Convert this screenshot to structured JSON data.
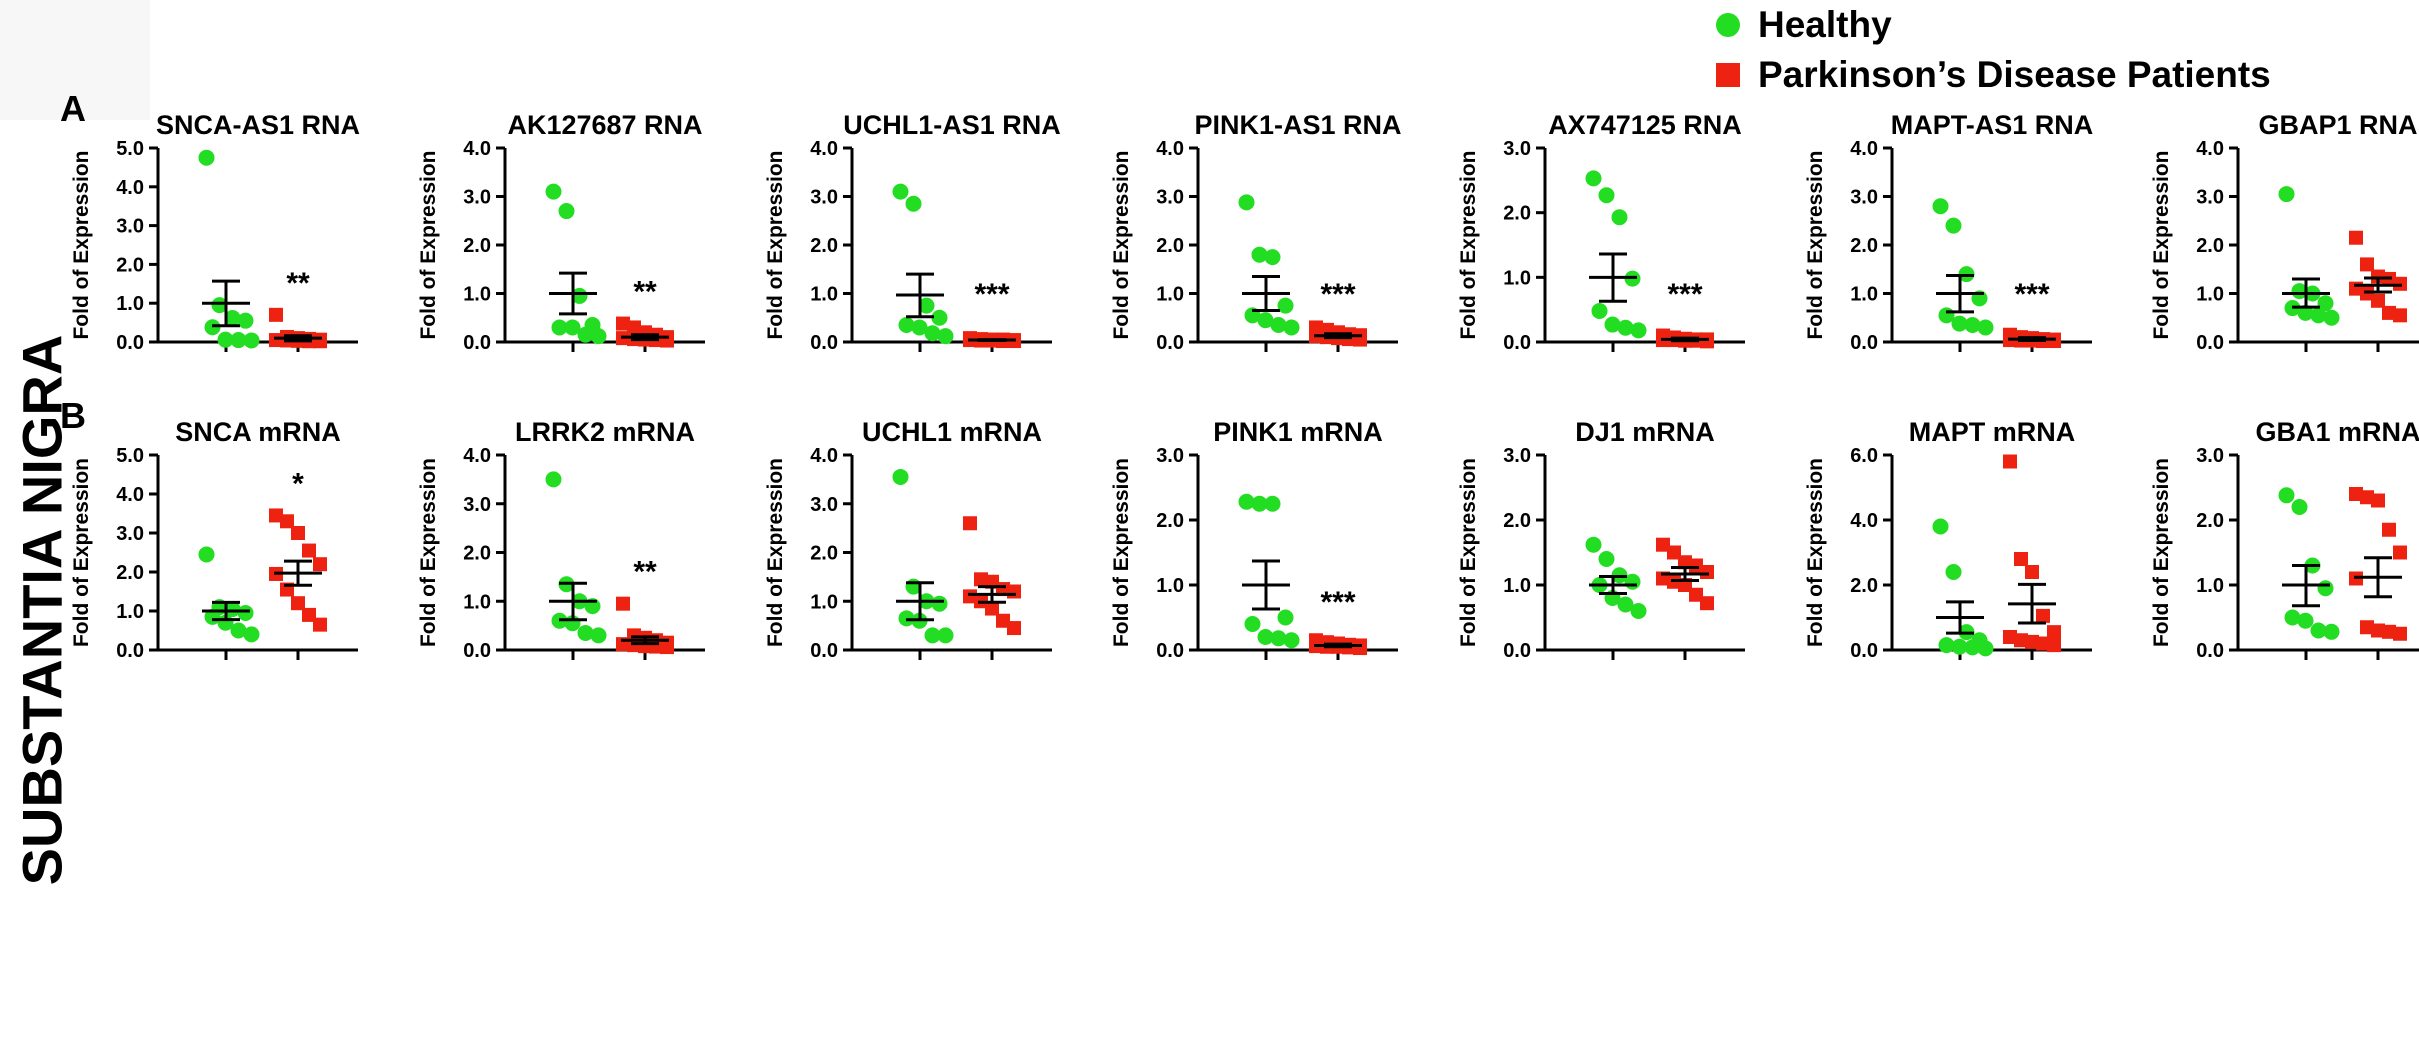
{
  "legend": {
    "healthy_label": "Healthy",
    "patients_label": "Parkinson’s Disease Patients",
    "healthy_color": "#22dd22",
    "patients_color": "#ee2211"
  },
  "side_label": "SUBSTANTIA NIGRA",
  "panel_labels": [
    "A",
    "B"
  ],
  "chart_data": [
    {
      "type": "scatter",
      "title": "SNCA-AS1 RNA",
      "ylabel": "Fold of Expression",
      "ylim": [
        0,
        5
      ],
      "yticks": [
        "0.0",
        "1.0",
        "2.0",
        "3.0",
        "4.0",
        "5.0"
      ],
      "significance": "**",
      "healthy": {
        "values": [
          4.75,
          0.95,
          0.62,
          0.55,
          0.38,
          0.06,
          0.05,
          0.04
        ],
        "mean": 1.0,
        "sem_low": 0.42,
        "sem_high": 1.57
      },
      "patients": {
        "values": [
          0.7,
          0.13,
          0.1,
          0.08,
          0.06,
          0.05,
          0.04,
          0.03,
          0.02,
          0.02
        ],
        "mean": 0.1,
        "sem_low": 0.03,
        "sem_high": 0.16
      }
    },
    {
      "type": "scatter",
      "title": "AK127687 RNA",
      "ylabel": "Fold of Expression",
      "ylim": [
        0,
        4
      ],
      "yticks": [
        "0.0",
        "1.0",
        "2.0",
        "3.0",
        "4.0"
      ],
      "significance": "**",
      "healthy": {
        "values": [
          3.1,
          2.7,
          0.95,
          0.35,
          0.3,
          0.3,
          0.15,
          0.12
        ],
        "mean": 1.0,
        "sem_low": 0.58,
        "sem_high": 1.42
      },
      "patients": {
        "values": [
          0.38,
          0.3,
          0.2,
          0.15,
          0.1,
          0.08,
          0.06,
          0.05,
          0.04,
          0.03
        ],
        "mean": 0.1,
        "sem_low": 0.05,
        "sem_high": 0.15
      }
    },
    {
      "type": "scatter",
      "title": "UCHL1-AS1 RNA",
      "ylabel": "Fold of Expression",
      "ylim": [
        0,
        4
      ],
      "yticks": [
        "0.0",
        "1.0",
        "2.0",
        "3.0",
        "4.0"
      ],
      "significance": "***",
      "healthy": {
        "values": [
          3.1,
          2.85,
          0.75,
          0.5,
          0.35,
          0.3,
          0.18,
          0.12
        ],
        "mean": 0.97,
        "sem_low": 0.52,
        "sem_high": 1.4
      },
      "patients": {
        "values": [
          0.08,
          0.06,
          0.05,
          0.05,
          0.04,
          0.04,
          0.03,
          0.03,
          0.02,
          0.02
        ],
        "mean": 0.04,
        "sem_low": 0.03,
        "sem_high": 0.05
      }
    },
    {
      "type": "scatter",
      "title": "PINK1-AS1 RNA",
      "ylabel": "Fold of Expression",
      "ylim": [
        0,
        4
      ],
      "yticks": [
        "0.0",
        "1.0",
        "2.0",
        "3.0",
        "4.0"
      ],
      "significance": "***",
      "healthy": {
        "values": [
          2.88,
          1.8,
          1.75,
          0.75,
          0.55,
          0.45,
          0.35,
          0.3
        ],
        "mean": 1.0,
        "sem_low": 0.65,
        "sem_high": 1.35
      },
      "patients": {
        "values": [
          0.3,
          0.25,
          0.2,
          0.16,
          0.14,
          0.12,
          0.1,
          0.08,
          0.06,
          0.05
        ],
        "mean": 0.13,
        "sem_low": 0.09,
        "sem_high": 0.17
      }
    },
    {
      "type": "scatter",
      "title": "AX747125 RNA",
      "ylabel": "Fold of Expression",
      "ylim": [
        0,
        3
      ],
      "yticks": [
        "0.0",
        "1.0",
        "2.0",
        "3.0"
      ],
      "significance": "***",
      "healthy": {
        "values": [
          2.53,
          2.27,
          1.93,
          0.98,
          0.48,
          0.27,
          0.22,
          0.18
        ],
        "mean": 1.0,
        "sem_low": 0.63,
        "sem_high": 1.36
      },
      "patients": {
        "values": [
          0.1,
          0.07,
          0.05,
          0.04,
          0.04,
          0.03,
          0.03,
          0.02,
          0.02,
          0.01
        ],
        "mean": 0.04,
        "sem_low": 0.02,
        "sem_high": 0.06
      }
    },
    {
      "type": "scatter",
      "title": "MAPT-AS1 RNA",
      "ylabel": "Fold of Expression",
      "ylim": [
        0,
        4
      ],
      "yticks": [
        "0.0",
        "1.0",
        "2.0",
        "3.0",
        "4.0"
      ],
      "significance": "***",
      "healthy": {
        "values": [
          2.8,
          2.4,
          1.4,
          0.9,
          0.55,
          0.38,
          0.35,
          0.3
        ],
        "mean": 1.0,
        "sem_low": 0.62,
        "sem_high": 1.37
      },
      "patients": {
        "values": [
          0.15,
          0.1,
          0.08,
          0.06,
          0.05,
          0.04,
          0.03,
          0.03,
          0.02,
          0.02
        ],
        "mean": 0.06,
        "sem_low": 0.03,
        "sem_high": 0.09
      }
    },
    {
      "type": "scatter",
      "title": "GBAP1 RNA",
      "ylabel": "Fold of Expression",
      "ylim": [
        0,
        4
      ],
      "yticks": [
        "0.0",
        "1.0",
        "2.0",
        "3.0",
        "4.0"
      ],
      "significance": "",
      "healthy": {
        "values": [
          3.05,
          1.05,
          1.0,
          0.8,
          0.7,
          0.6,
          0.55,
          0.5
        ],
        "mean": 1.0,
        "sem_low": 0.72,
        "sem_high": 1.3
      },
      "patients": {
        "values": [
          2.15,
          1.6,
          1.35,
          1.3,
          1.2,
          1.1,
          1.0,
          0.85,
          0.6,
          0.55
        ],
        "mean": 1.17,
        "sem_low": 1.03,
        "sem_high": 1.32
      }
    },
    {
      "type": "scatter",
      "title": "SNCA mRNA",
      "ylabel": "Fold of Expression",
      "ylim": [
        0,
        5
      ],
      "yticks": [
        "0.0",
        "1.0",
        "2.0",
        "3.0",
        "4.0",
        "5.0"
      ],
      "significance": "*",
      "healthy": {
        "values": [
          2.45,
          1.1,
          1.05,
          0.95,
          0.85,
          0.7,
          0.5,
          0.4
        ],
        "mean": 1.0,
        "sem_low": 0.78,
        "sem_high": 1.22
      },
      "patients": {
        "values": [
          3.45,
          3.3,
          3.0,
          2.55,
          2.2,
          1.95,
          1.55,
          1.2,
          0.9,
          0.65
        ],
        "mean": 1.97,
        "sem_low": 1.66,
        "sem_high": 2.28
      }
    },
    {
      "type": "scatter",
      "title": "LRRK2 mRNA",
      "ylabel": "Fold of Expression",
      "ylim": [
        0,
        4
      ],
      "yticks": [
        "0.0",
        "1.0",
        "2.0",
        "3.0",
        "4.0"
      ],
      "significance": "**",
      "healthy": {
        "values": [
          3.5,
          1.35,
          1.0,
          0.9,
          0.6,
          0.55,
          0.35,
          0.3
        ],
        "mean": 1.0,
        "sem_low": 0.62,
        "sem_high": 1.37
      },
      "patients": {
        "values": [
          0.95,
          0.3,
          0.25,
          0.2,
          0.15,
          0.12,
          0.1,
          0.08,
          0.07,
          0.06
        ],
        "mean": 0.2,
        "sem_low": 0.13,
        "sem_high": 0.27
      }
    },
    {
      "type": "scatter",
      "title": "UCHL1 mRNA",
      "ylabel": "Fold of Expression",
      "ylim": [
        0,
        4
      ],
      "yticks": [
        "0.0",
        "1.0",
        "2.0",
        "3.0",
        "4.0"
      ],
      "significance": "",
      "healthy": {
        "values": [
          3.55,
          1.3,
          1.0,
          0.95,
          0.65,
          0.6,
          0.3,
          0.3
        ],
        "mean": 1.0,
        "sem_low": 0.62,
        "sem_high": 1.38
      },
      "patients": {
        "values": [
          2.6,
          1.45,
          1.4,
          1.25,
          1.2,
          1.1,
          1.0,
          0.85,
          0.6,
          0.45
        ],
        "mean": 1.14,
        "sem_low": 0.98,
        "sem_high": 1.3
      }
    },
    {
      "type": "scatter",
      "title": "PINK1 mRNA",
      "ylabel": "Fold of Expression",
      "ylim": [
        0,
        3
      ],
      "yticks": [
        "0.0",
        "1.0",
        "2.0",
        "3.0"
      ],
      "significance": "***",
      "healthy": {
        "values": [
          2.28,
          2.25,
          2.25,
          0.5,
          0.4,
          0.2,
          0.18,
          0.15
        ],
        "mean": 1.0,
        "sem_low": 0.63,
        "sem_high": 1.37
      },
      "patients": {
        "values": [
          0.15,
          0.12,
          0.1,
          0.08,
          0.07,
          0.06,
          0.05,
          0.05,
          0.04,
          0.03
        ],
        "mean": 0.07,
        "sem_low": 0.05,
        "sem_high": 0.09
      }
    },
    {
      "type": "scatter",
      "title": "DJ1 mRNA",
      "ylabel": "Fold of Expression",
      "ylim": [
        0,
        3
      ],
      "yticks": [
        "0.0",
        "1.0",
        "2.0",
        "3.0"
      ],
      "significance": "",
      "healthy": {
        "values": [
          1.62,
          1.4,
          1.15,
          1.05,
          1.0,
          0.8,
          0.7,
          0.6
        ],
        "mean": 1.0,
        "sem_low": 0.87,
        "sem_high": 1.13
      },
      "patients": {
        "values": [
          1.62,
          1.5,
          1.35,
          1.3,
          1.2,
          1.1,
          1.05,
          1.0,
          0.85,
          0.72
        ],
        "mean": 1.17,
        "sem_low": 1.07,
        "sem_high": 1.27
      }
    },
    {
      "type": "scatter",
      "title": "MAPT mRNA",
      "ylabel": "Fold of Expression",
      "ylim": [
        0,
        6
      ],
      "yticks": [
        "0.0",
        "2.0",
        "4.0",
        "6.0"
      ],
      "significance": "",
      "healthy": {
        "values": [
          3.8,
          2.4,
          0.55,
          0.3,
          0.15,
          0.1,
          0.08,
          0.05
        ],
        "mean": 1.0,
        "sem_low": 0.52,
        "sem_high": 1.48
      },
      "patients": {
        "values": [
          5.8,
          2.8,
          2.4,
          1.05,
          0.55,
          0.4,
          0.3,
          0.25,
          0.2,
          0.15
        ],
        "mean": 1.42,
        "sem_low": 0.83,
        "sem_high": 2.02
      }
    },
    {
      "type": "scatter",
      "title": "GBA1 mRNA",
      "ylabel": "Fold of Expression",
      "ylim": [
        0,
        3
      ],
      "yticks": [
        "0.0",
        "1.0",
        "2.0",
        "3.0"
      ],
      "significance": "",
      "healthy": {
        "values": [
          2.38,
          2.2,
          1.3,
          0.95,
          0.5,
          0.45,
          0.3,
          0.28
        ],
        "mean": 1.0,
        "sem_low": 0.68,
        "sem_high": 1.3
      },
      "patients": {
        "values": [
          2.4,
          2.35,
          2.3,
          1.85,
          1.5,
          1.1,
          0.35,
          0.3,
          0.28,
          0.25
        ],
        "mean": 1.12,
        "sem_low": 0.82,
        "sem_high": 1.42
      }
    }
  ]
}
